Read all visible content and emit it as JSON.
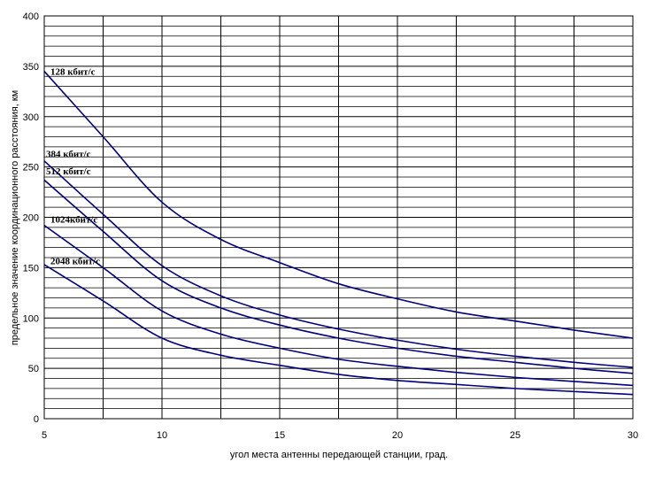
{
  "chart_data": {
    "type": "line",
    "xlabel": "угол места антенны передающей станции, град.",
    "ylabel": "предельное значение координационного расстояния, км",
    "xlim": [
      5,
      30
    ],
    "ylim": [
      0,
      400
    ],
    "x_major_ticks": [
      5,
      10,
      15,
      20,
      25,
      30
    ],
    "x_gridlines": [
      5,
      7.5,
      10,
      12.5,
      15,
      17.5,
      20,
      22.5,
      25,
      27.5,
      30
    ],
    "y_major_ticks": [
      0,
      50,
      100,
      150,
      200,
      250,
      300,
      350,
      400
    ],
    "y_minor_step": 10,
    "grid": true,
    "legend": "inline labels",
    "line_color": "#000080",
    "x": [
      5,
      7.5,
      10,
      12.5,
      15,
      17.5,
      20,
      22.5,
      25,
      27.5,
      30
    ],
    "series": [
      {
        "name": "128 кбит/с",
        "values": [
          345,
          280,
          215,
          178,
          155,
          134,
          119,
          106,
          97,
          88,
          80
        ]
      },
      {
        "name": "384 кбит/с",
        "values": [
          256,
          203,
          152,
          122,
          103,
          89,
          78,
          69,
          62,
          56,
          51
        ]
      },
      {
        "name": "512 кбит/с",
        "values": [
          237,
          186,
          137,
          110,
          93,
          80,
          70,
          62,
          56,
          50,
          45
        ]
      },
      {
        "name": "1024кбит/с",
        "values": [
          192,
          150,
          107,
          84,
          70,
          59,
          52,
          46,
          41,
          37,
          33
        ]
      },
      {
        "name": "2048 кбит/с",
        "values": [
          153,
          117,
          80,
          63,
          53,
          44,
          38,
          34,
          30,
          27,
          24
        ]
      }
    ]
  }
}
